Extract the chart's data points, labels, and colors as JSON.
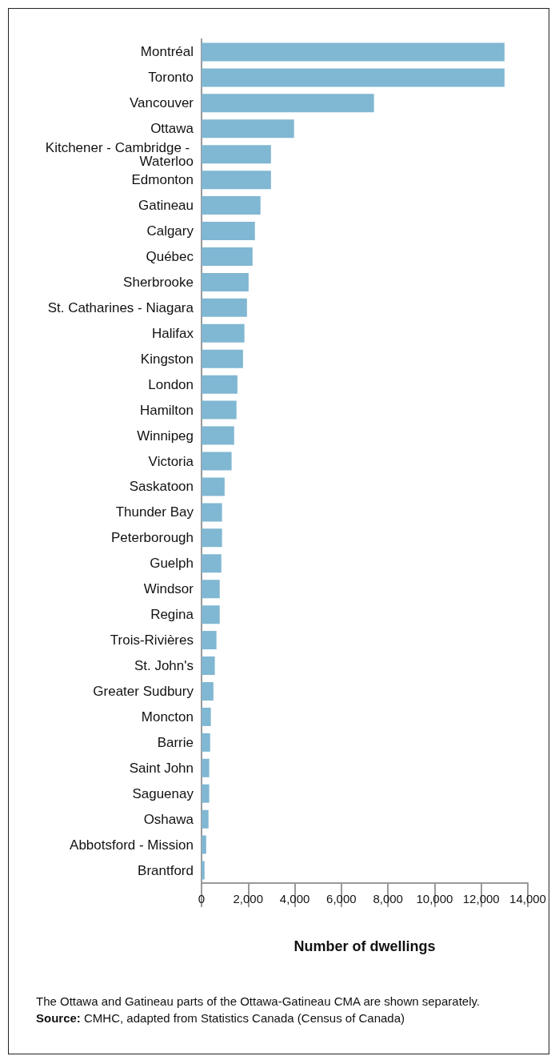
{
  "chart_data": {
    "type": "bar",
    "orientation": "horizontal",
    "xlabel": "Number of dwellings",
    "categories": [
      "Montréal",
      "Toronto",
      "Vancouver",
      "Ottawa",
      "Kitchener - Cambridge - Waterloo",
      "Edmonton",
      "Gatineau",
      "Calgary",
      "Québec",
      "Sherbrooke",
      "St. Catharines - Niagara",
      "Halifax",
      "Kingston",
      "London",
      "Hamilton",
      "Winnipeg",
      "Victoria",
      "Saskatoon",
      "Thunder Bay",
      "Peterborough",
      "Guelph",
      "Windsor",
      "Regina",
      "Trois-Rivières",
      "St. John's",
      "Greater Sudbury",
      "Moncton",
      "Barrie",
      "Saint John",
      "Saguenay",
      "Oshawa",
      "Abbotsford - Mission",
      "Brantford"
    ],
    "values": [
      13000,
      13000,
      7400,
      3970,
      2980,
      2980,
      2530,
      2290,
      2190,
      2020,
      1950,
      1840,
      1780,
      1540,
      1500,
      1400,
      1290,
      990,
      880,
      880,
      850,
      780,
      780,
      640,
      570,
      510,
      400,
      370,
      330,
      330,
      300,
      200,
      130
    ],
    "color": "#80b7d2",
    "xlim": [
      0,
      14000
    ],
    "xticks": [
      0,
      {
        "value": 2000,
        "label": "2,000"
      },
      {
        "value": 4000,
        "label": "4,000"
      },
      {
        "value": 6000,
        "label": "6,000"
      },
      {
        "value": 8000,
        "label": "8,000"
      },
      {
        "value": 10000,
        "label": "10,000"
      },
      {
        "value": 12000,
        "label": "12,000"
      },
      {
        "value": 14000,
        "label": "14,000"
      }
    ],
    "annotations": [
      "The Ottawa and Gatineau parts of the Ottawa-Gatineau CMA are shown separately.",
      "Source: CMHC, adapted from Statistics Canada (Census of Canada)"
    ]
  }
}
